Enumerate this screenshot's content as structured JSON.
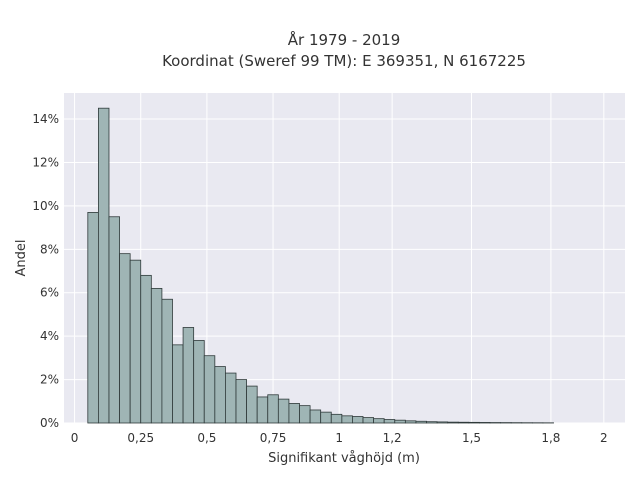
{
  "chart_data": {
    "type": "bar",
    "title": [
      "År 1979 - 2019",
      "Koordinat (Sweref 99 TM): E 369351, N 6167225"
    ],
    "xlabel": "Signifikant våghöjd (m)",
    "ylabel": "Andel",
    "xlim": [
      -0.04,
      2.08
    ],
    "ylim": [
      0,
      15.2
    ],
    "grid": true,
    "bin_width": 0.04,
    "x_ticks": [
      {
        "value": 0,
        "label": "0"
      },
      {
        "value": 0.25,
        "label": "0,25"
      },
      {
        "value": 0.5,
        "label": "0,5"
      },
      {
        "value": 0.75,
        "label": "0,75"
      },
      {
        "value": 1,
        "label": "1"
      },
      {
        "value": 1.2,
        "label": "1,2"
      },
      {
        "value": 1.5,
        "label": "1,5"
      },
      {
        "value": 1.8,
        "label": "1,8"
      },
      {
        "value": 2,
        "label": "2"
      }
    ],
    "y_ticks": [
      {
        "value": 0,
        "label": "0%"
      },
      {
        "value": 2,
        "label": "2%"
      },
      {
        "value": 4,
        "label": "4%"
      },
      {
        "value": 6,
        "label": "6%"
      },
      {
        "value": 8,
        "label": "8%"
      },
      {
        "value": 10,
        "label": "10%"
      },
      {
        "value": 12,
        "label": "12%"
      },
      {
        "value": 14,
        "label": "14%"
      }
    ],
    "bins_start": [
      0.05,
      0.09,
      0.13,
      0.17,
      0.21,
      0.25,
      0.29,
      0.33,
      0.37,
      0.41,
      0.45,
      0.49,
      0.53,
      0.57,
      0.61,
      0.65,
      0.69,
      0.73,
      0.77,
      0.81,
      0.85,
      0.89,
      0.93,
      0.97,
      1.01,
      1.05,
      1.09,
      1.13,
      1.17,
      1.21,
      1.25,
      1.29,
      1.33,
      1.37,
      1.41,
      1.45,
      1.49,
      1.53,
      1.57,
      1.61,
      1.65,
      1.69,
      1.73,
      1.77
    ],
    "values": [
      9.7,
      14.5,
      9.5,
      7.8,
      7.5,
      6.8,
      6.2,
      5.7,
      3.6,
      4.4,
      3.8,
      3.1,
      2.6,
      2.3,
      2.0,
      1.7,
      1.2,
      1.3,
      1.1,
      0.9,
      0.8,
      0.6,
      0.5,
      0.4,
      0.33,
      0.3,
      0.25,
      0.2,
      0.16,
      0.13,
      0.1,
      0.08,
      0.06,
      0.05,
      0.04,
      0.035,
      0.03,
      0.025,
      0.02,
      0.018,
      0.015,
      0.012,
      0.01,
      0.008
    ],
    "colors": {
      "plot_background": "#e9e9f1",
      "bar_fill": "#9fb5b5",
      "bar_edge": "#2f3a3a",
      "grid": "#ffffff",
      "text": "#333333"
    }
  }
}
